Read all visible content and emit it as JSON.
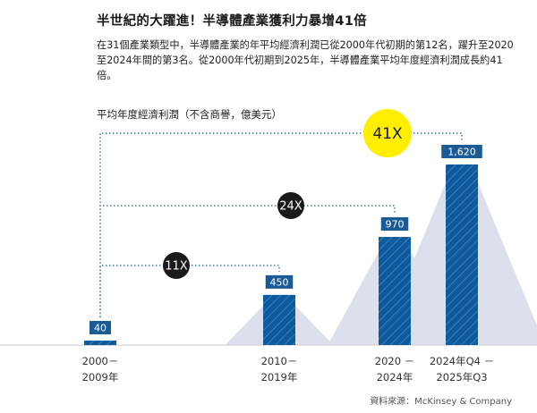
{
  "header": {
    "title": "半世紀的大躍進！半導體產業獲利力暴增41倍",
    "description": "在31個產業類型中，半導體產業的年平均經濟利潤已從2000年代初期的第12名，躍升至2020至2024年間的第3名。從2000年代初期到2025年，半導體產業平均年度經濟利潤成長約41倍。"
  },
  "source": "資料來源：McKinsey & Company",
  "chart_data": {
    "type": "bar",
    "ylabel": "平均年度經濟利潤（不含商譽，億美元）",
    "categories": [
      [
        "2000－",
        "2009年"
      ],
      [
        "2010－",
        "2019年"
      ],
      [
        "2020 －",
        "2024年"
      ],
      [
        "2024年Q4 －",
        "2025年Q3"
      ]
    ],
    "values": [
      40,
      450,
      970,
      1620
    ],
    "value_labels": [
      "40",
      "450",
      "970",
      "1,620"
    ],
    "multipliers": [
      {
        "label": "11X",
        "from": 0,
        "to": 1
      },
      {
        "label": "24X",
        "from": 0,
        "to": 2
      },
      {
        "label": "41X",
        "from": 0,
        "to": 3
      }
    ],
    "colors": {
      "bar": "#0d5a9e",
      "hatch": "#5b93c7",
      "label_box": "#1a5a96",
      "highlight": "#ffee00",
      "badge": "#1a1a1a",
      "dotted": "#1a5a96",
      "shadow": "#dde0ec"
    }
  }
}
